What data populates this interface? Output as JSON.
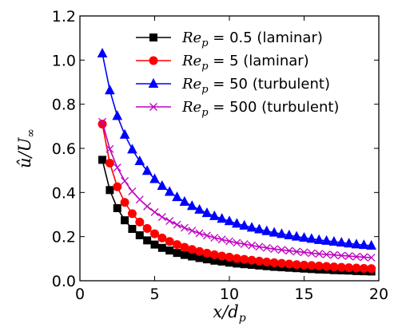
{
  "chart_data": {
    "type": "line",
    "xlabel": "x/d_p",
    "ylabel": "û/U_∞",
    "xlim": [
      0,
      20
    ],
    "ylim": [
      0,
      1.2
    ],
    "xticks": [
      "0",
      "5",
      "10",
      "15",
      "20"
    ],
    "yticks": [
      "0.0",
      "0.2",
      "0.4",
      "0.6",
      "0.8",
      "1.0",
      "1.2"
    ],
    "grid": false,
    "legend_position": "top-right",
    "x": [
      1.5,
      2.0,
      2.5,
      3.0,
      3.5,
      4.0,
      4.5,
      5.0,
      5.5,
      6.0,
      6.5,
      7.0,
      7.5,
      8.0,
      8.5,
      9.0,
      9.5,
      10.0,
      10.5,
      11.0,
      11.5,
      12.0,
      12.5,
      13.0,
      13.5,
      14.0,
      14.5,
      15.0,
      15.5,
      16.0,
      16.5,
      17.0,
      17.5,
      18.0,
      18.5,
      19.0,
      19.5
    ],
    "series": [
      {
        "name": "Re_p = 0.5 (laminar)",
        "label_math": "Re",
        "label_sub": "p",
        "label_rest": " = 0.5 (laminar)",
        "color": "#000000",
        "marker": "square",
        "values": [
          0.548,
          0.411,
          0.329,
          0.274,
          0.235,
          0.206,
          0.183,
          0.164,
          0.149,
          0.137,
          0.126,
          0.117,
          0.11,
          0.103,
          0.097,
          0.091,
          0.087,
          0.082,
          0.078,
          0.075,
          0.072,
          0.069,
          0.066,
          0.063,
          0.061,
          0.059,
          0.057,
          0.055,
          0.053,
          0.051,
          0.05,
          0.048,
          0.047,
          0.046,
          0.044,
          0.043,
          0.042
        ]
      },
      {
        "name": "Re_p = 5 (laminar)",
        "label_math": "Re",
        "label_sub": "p",
        "label_rest": " = 5 (laminar)",
        "color": "#ff0000",
        "marker": "circle",
        "values": [
          0.71,
          0.533,
          0.426,
          0.355,
          0.304,
          0.266,
          0.237,
          0.213,
          0.194,
          0.178,
          0.164,
          0.152,
          0.142,
          0.133,
          0.125,
          0.118,
          0.112,
          0.107,
          0.101,
          0.097,
          0.093,
          0.089,
          0.085,
          0.082,
          0.079,
          0.076,
          0.073,
          0.071,
          0.069,
          0.067,
          0.065,
          0.063,
          0.061,
          0.059,
          0.058,
          0.056,
          0.055
        ]
      },
      {
        "name": "Re_p = 50 (turbulent)",
        "label_math": "Re",
        "label_sub": "p",
        "label_rest": " = 50 (turbulent)",
        "color": "#0000ff",
        "marker": "triangle",
        "values": [
          1.03,
          0.863,
          0.747,
          0.662,
          0.595,
          0.542,
          0.498,
          0.461,
          0.43,
          0.403,
          0.379,
          0.358,
          0.339,
          0.322,
          0.307,
          0.293,
          0.281,
          0.27,
          0.259,
          0.25,
          0.241,
          0.233,
          0.225,
          0.218,
          0.212,
          0.206,
          0.2,
          0.195,
          0.19,
          0.185,
          0.181,
          0.177,
          0.173,
          0.169,
          0.165,
          0.162,
          0.159
        ]
      },
      {
        "name": "Re_p = 500 (turbulent)",
        "label_math": "Re",
        "label_sub": "p",
        "label_rest": " = 500 (turbulent)",
        "color": "#bf00bf",
        "marker": "x",
        "values": [
          0.72,
          0.597,
          0.513,
          0.452,
          0.405,
          0.368,
          0.337,
          0.311,
          0.289,
          0.271,
          0.254,
          0.24,
          0.227,
          0.215,
          0.205,
          0.195,
          0.187,
          0.179,
          0.172,
          0.166,
          0.16,
          0.154,
          0.149,
          0.144,
          0.14,
          0.136,
          0.132,
          0.129,
          0.125,
          0.122,
          0.119,
          0.117,
          0.114,
          0.112,
          0.109,
          0.107,
          0.105
        ]
      }
    ]
  }
}
